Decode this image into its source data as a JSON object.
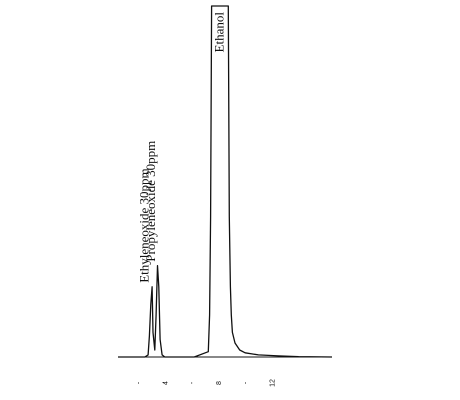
{
  "chart_data": {
    "type": "line",
    "xlim": [
      0.5,
      16.5
    ],
    "ylim": [
      0,
      100
    ],
    "x_ticks": [
      {
        "value": 2,
        "label": "-"
      },
      {
        "value": 4,
        "label": "4"
      },
      {
        "value": 6,
        "label": "-"
      },
      {
        "value": 8,
        "label": "8"
      },
      {
        "value": 10,
        "label": "-"
      },
      {
        "value": 12,
        "label": "12"
      }
    ],
    "series": [
      {
        "x": [
          0.5,
          2.5,
          2.75,
          2.85,
          2.95,
          3.05,
          3.12,
          3.25,
          3.35,
          3.45,
          3.55,
          3.65,
          3.8,
          4.0,
          6.2,
          7.25,
          7.35,
          7.42,
          7.5,
          8.75,
          8.82,
          8.9,
          8.97,
          9.05,
          9.25,
          9.6,
          10.0,
          11.0,
          12.5,
          14.0,
          16.5
        ],
        "y": [
          0,
          0,
          0.6,
          6,
          15,
          20,
          7,
          2,
          12,
          26,
          20,
          5,
          0.6,
          0,
          0,
          1.5,
          12,
          40,
          100,
          100,
          40,
          20,
          12,
          7,
          4,
          2,
          1.2,
          0.6,
          0.3,
          0.1,
          0
        ]
      }
    ],
    "peaks": [
      {
        "x": 3.0,
        "y": 20,
        "label": "Ethyleneoxide 30ppm"
      },
      {
        "x": 3.5,
        "y": 26,
        "label": "Propyleneoxide 30ppm"
      },
      {
        "x": 8.1,
        "y": 100,
        "label": "Ethanol"
      }
    ]
  }
}
